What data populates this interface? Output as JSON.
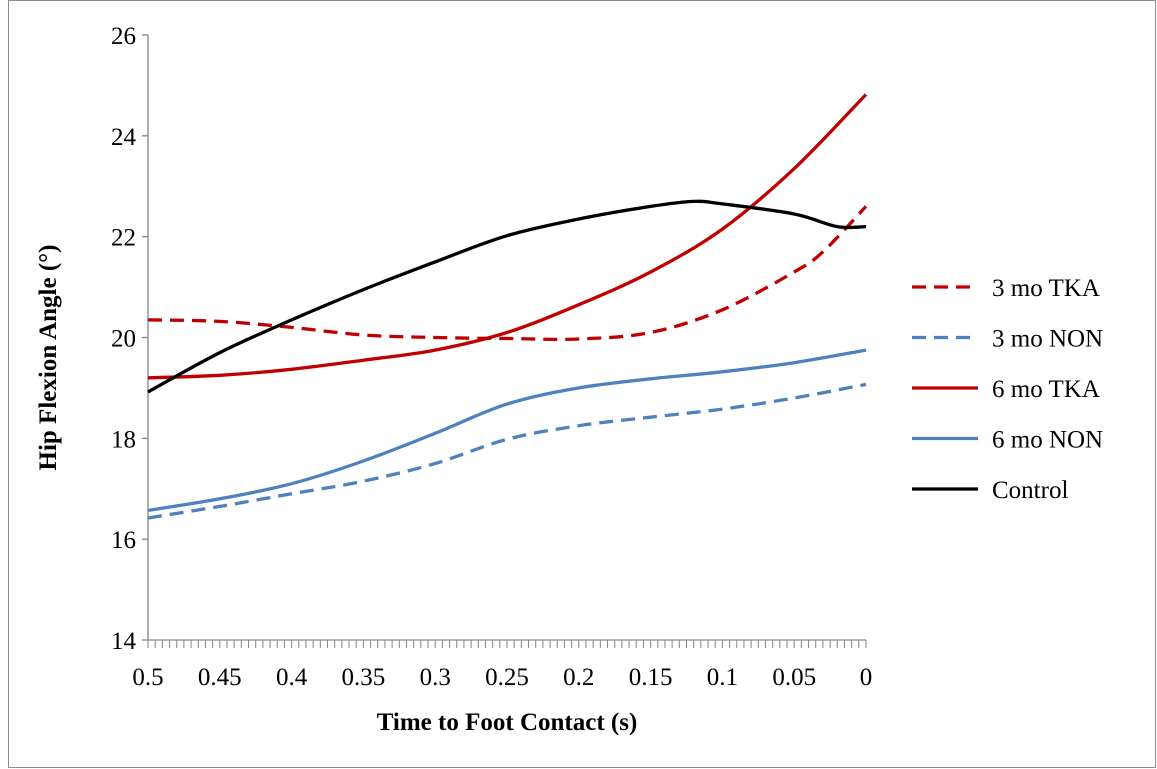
{
  "chart_data": {
    "type": "line",
    "title": "",
    "xlabel": "Time to Foot Contact (s)",
    "ylabel": "Hip Flexion Angle (°)",
    "xlim": [
      0.5,
      0
    ],
    "ylim": [
      14,
      26
    ],
    "x_ticks": [
      "0.5",
      "0.45",
      "0.4",
      "0.35",
      "0.3",
      "0.25",
      "0.2",
      "0.15",
      "0.1",
      "0.05",
      "0"
    ],
    "y_ticks": [
      "14",
      "16",
      "18",
      "20",
      "22",
      "24",
      "26"
    ],
    "grid": false,
    "legend_position": "right",
    "series": [
      {
        "name": "3 mo TKA",
        "color": "#C00000",
        "dash": "dashed",
        "points": [
          [
            0.5,
            20.35
          ],
          [
            0.45,
            20.32
          ],
          [
            0.4,
            20.2
          ],
          [
            0.35,
            20.05
          ],
          [
            0.3,
            20.0
          ],
          [
            0.25,
            19.98
          ],
          [
            0.2,
            19.97
          ],
          [
            0.15,
            20.1
          ],
          [
            0.1,
            20.55
          ],
          [
            0.05,
            21.3
          ],
          [
            0.03,
            21.7
          ],
          [
            0.0,
            22.6
          ]
        ]
      },
      {
        "name": "3 mo NON",
        "color": "#4F81BD",
        "dash": "dashed",
        "points": [
          [
            0.5,
            16.42
          ],
          [
            0.45,
            16.65
          ],
          [
            0.4,
            16.9
          ],
          [
            0.35,
            17.15
          ],
          [
            0.3,
            17.5
          ],
          [
            0.25,
            17.98
          ],
          [
            0.2,
            18.25
          ],
          [
            0.15,
            18.42
          ],
          [
            0.1,
            18.58
          ],
          [
            0.05,
            18.8
          ],
          [
            0.0,
            19.07
          ]
        ]
      },
      {
        "name": "6 mo TKA",
        "color": "#C00000",
        "dash": "solid",
        "points": [
          [
            0.5,
            19.2
          ],
          [
            0.45,
            19.25
          ],
          [
            0.4,
            19.37
          ],
          [
            0.35,
            19.55
          ],
          [
            0.3,
            19.75
          ],
          [
            0.25,
            20.1
          ],
          [
            0.2,
            20.65
          ],
          [
            0.15,
            21.3
          ],
          [
            0.1,
            22.15
          ],
          [
            0.05,
            23.35
          ],
          [
            0.0,
            24.82
          ]
        ]
      },
      {
        "name": "6 mo NON",
        "color": "#4F81BD",
        "dash": "solid",
        "points": [
          [
            0.5,
            16.57
          ],
          [
            0.45,
            16.8
          ],
          [
            0.4,
            17.1
          ],
          [
            0.35,
            17.55
          ],
          [
            0.3,
            18.1
          ],
          [
            0.25,
            18.68
          ],
          [
            0.2,
            19.0
          ],
          [
            0.15,
            19.18
          ],
          [
            0.1,
            19.32
          ],
          [
            0.05,
            19.5
          ],
          [
            0.0,
            19.75
          ]
        ]
      },
      {
        "name": "Control",
        "color": "#000000",
        "dash": "solid",
        "points": [
          [
            0.5,
            18.92
          ],
          [
            0.45,
            19.7
          ],
          [
            0.4,
            20.35
          ],
          [
            0.35,
            20.95
          ],
          [
            0.3,
            21.5
          ],
          [
            0.25,
            22.02
          ],
          [
            0.2,
            22.35
          ],
          [
            0.15,
            22.6
          ],
          [
            0.12,
            22.7
          ],
          [
            0.1,
            22.65
          ],
          [
            0.05,
            22.45
          ],
          [
            0.02,
            22.2
          ],
          [
            0.0,
            22.2
          ]
        ]
      }
    ]
  }
}
